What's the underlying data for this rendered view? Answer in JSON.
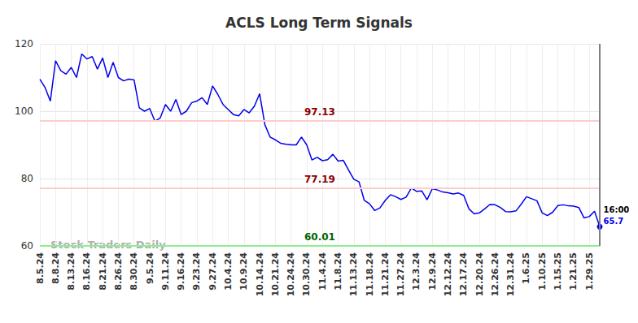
{
  "chart_data": {
    "type": "line",
    "title": "ACLS Long Term Signals",
    "categories": [
      "8.5.24",
      null,
      null,
      "8.8.24",
      null,
      null,
      "8.13.24",
      null,
      null,
      "8.16.24",
      null,
      null,
      "8.21.24",
      null,
      null,
      "8.26.24",
      null,
      null,
      "8.30.24",
      null,
      null,
      "9.5.24",
      null,
      null,
      "9.11.24",
      null,
      null,
      "9.16.24",
      null,
      null,
      "9.23.24",
      null,
      null,
      "9.27.24",
      null,
      null,
      "10.4.24",
      null,
      null,
      "10.9.24",
      null,
      null,
      "10.14.24",
      null,
      null,
      "10.21.24",
      null,
      null,
      "10.24.24",
      null,
      null,
      "10.30.24",
      null,
      null,
      "11.4.24",
      null,
      null,
      "11.8.24",
      null,
      null,
      "11.13.24",
      null,
      null,
      "11.18.24",
      null,
      null,
      "11.21.24",
      null,
      null,
      "11.27.24",
      null,
      null,
      "12.3.24",
      null,
      null,
      "12.9.24",
      null,
      null,
      "12.12.24",
      null,
      null,
      "12.17.24",
      null,
      null,
      "12.20.24",
      null,
      null,
      "12.26.24",
      null,
      null,
      "12.31.24",
      null,
      null,
      "1.6.25",
      null,
      null,
      "1.10.25",
      null,
      null,
      "1.15.25",
      null,
      null,
      "1.21.25",
      null,
      null,
      "1.29.25",
      null,
      null
    ],
    "values": [
      109.5,
      107,
      103,
      115,
      112,
      111,
      113,
      110,
      117,
      115.5,
      116.2,
      112.5,
      115.8,
      110,
      114.5,
      110,
      109,
      109.5,
      109.3,
      101,
      100,
      100.8,
      97,
      98,
      102,
      100,
      103.5,
      99,
      100,
      102.5,
      103,
      104,
      102,
      107.5,
      105,
      102,
      100.5,
      99,
      98.6,
      100.5,
      99.5,
      101.5,
      105.2,
      96,
      92.3,
      91.5,
      90.5,
      90.2,
      90,
      90,
      92.3,
      90,
      85.5,
      86.3,
      85.3,
      85.6,
      87.2,
      85.2,
      85.4,
      82.5,
      79.8,
      79,
      73.5,
      72.5,
      70.5,
      71.3,
      73.5,
      75.2,
      74.6,
      73.8,
      74.5,
      77.2,
      76.2,
      76.3,
      73.7,
      77,
      76.6,
      76,
      75.8,
      75.4,
      75.7,
      75,
      71,
      69.5,
      69.8,
      71,
      72.3,
      72.2,
      71.4,
      70.2,
      70.1,
      70.4,
      72.4,
      74.6,
      74,
      73.4,
      69.8,
      69,
      70,
      72,
      72.2,
      71.9,
      71.8,
      71.4,
      68.3,
      68.7,
      70.3,
      65.7
    ],
    "color": "#0000ee",
    "ylim": [
      60,
      120
    ],
    "yticks": [
      60,
      80,
      100,
      120
    ],
    "grid": true,
    "levels": [
      {
        "value": 97.13,
        "color": "#ffcccc",
        "label_color": "#8b0000"
      },
      {
        "value": 77.19,
        "color": "#ffcccc",
        "label_color": "#8b0000"
      },
      {
        "value": 60.01,
        "color": "#90ee90",
        "label_color": "#006400"
      }
    ],
    "last_point_time": "16:00",
    "watermark": "Stock Traders Daily"
  }
}
